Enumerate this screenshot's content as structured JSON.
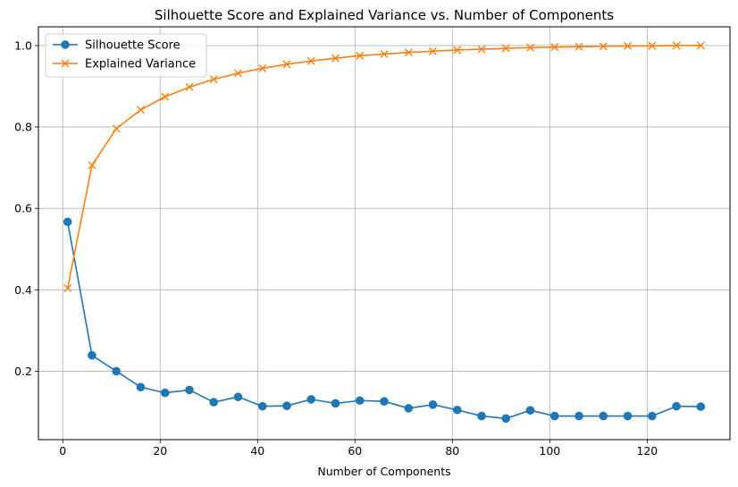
{
  "chart_data": {
    "type": "line",
    "title": "Silhouette Score and Explained Variance vs. Number of Components",
    "xlabel": "Number of Components",
    "ylabel": "",
    "xlim": [
      -5,
      137
    ],
    "ylim": [
      0.032,
      1.046
    ],
    "x_ticks": [
      0,
      20,
      40,
      60,
      80,
      100,
      120
    ],
    "y_ticks": [
      0.2,
      0.4,
      0.6,
      0.8,
      1.0
    ],
    "x_tick_labels": [
      "0",
      "20",
      "40",
      "60",
      "80",
      "100",
      "120"
    ],
    "y_tick_labels": [
      "0.2",
      "0.4",
      "0.6",
      "0.8",
      "1.0"
    ],
    "grid": true,
    "legend_position": "top-left",
    "x": [
      1,
      6,
      11,
      16,
      21,
      26,
      31,
      36,
      41,
      46,
      51,
      56,
      61,
      66,
      71,
      76,
      81,
      86,
      91,
      96,
      101,
      106,
      111,
      116,
      121,
      126,
      131
    ],
    "series": [
      {
        "name": "Silhouette Score",
        "color": "#1f77b4",
        "marker": "circle",
        "values": [
          0.567,
          0.239,
          0.2,
          0.161,
          0.147,
          0.154,
          0.124,
          0.137,
          0.114,
          0.115,
          0.131,
          0.121,
          0.128,
          0.126,
          0.109,
          0.118,
          0.105,
          0.09,
          0.084,
          0.104,
          0.09,
          0.09,
          0.09,
          0.09,
          0.09,
          0.114,
          0.113
        ]
      },
      {
        "name": "Explained Variance",
        "color": "#ff7f0e",
        "marker": "x",
        "values": [
          0.404,
          0.706,
          0.796,
          0.842,
          0.874,
          0.898,
          0.917,
          0.932,
          0.944,
          0.954,
          0.962,
          0.969,
          0.975,
          0.979,
          0.983,
          0.986,
          0.989,
          0.991,
          0.993,
          0.995,
          0.996,
          0.997,
          0.998,
          0.999,
          0.999,
          1.0,
          1.0
        ]
      }
    ]
  }
}
